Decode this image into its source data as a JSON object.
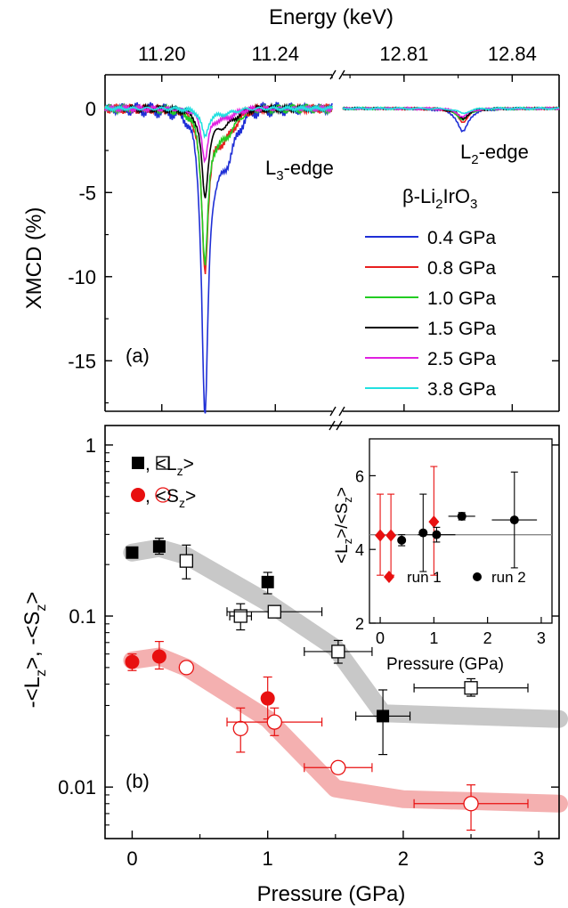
{
  "chart_data": [
    {
      "type": "line",
      "panel_label": "(a)",
      "ylabel": "XMCD (%)",
      "top_xlabel": "Energy (keV)",
      "ylim": [
        -18,
        2
      ],
      "yticks": [
        0,
        -5,
        -10,
        -15
      ],
      "segments": [
        {
          "xlim": [
            11.18,
            11.26
          ],
          "ticks": [
            11.2,
            11.24
          ],
          "tick_labels": [
            "11.20",
            "11.24"
          ]
        },
        {
          "xlim": [
            12.793,
            12.853
          ],
          "ticks": [
            12.81,
            12.84
          ],
          "tick_labels": [
            "12.81",
            "12.84"
          ]
        }
      ],
      "annotations": {
        "l3": {
          "main": "L",
          "sub": "3",
          "rest": "-edge"
        },
        "l2": {
          "main": "L",
          "sub": "2",
          "rest": "-edge"
        },
        "compound": {
          "main": "β-Li",
          "sub1": "2",
          "mid": "IrO",
          "sub2": "3"
        }
      },
      "legend_position": "right",
      "series": [
        {
          "name": "0.4 GPa",
          "color": "#1f2fd6",
          "l3_min": -17.3,
          "l2_min": -1.4
        },
        {
          "name": "0.8 GPa",
          "color": "#e82020",
          "l3_min": -9.1,
          "l2_min": -0.8
        },
        {
          "name": "1.0 GPa",
          "color": "#22cc22",
          "l3_min": -8.7,
          "l2_min": -0.7
        },
        {
          "name": "1.5 GPa",
          "color": "#000000",
          "l3_min": -5.0,
          "l2_min": -0.6
        },
        {
          "name": "2.5 GPa",
          "color": "#e020e0",
          "l3_min": -2.9,
          "l2_min": -0.5
        },
        {
          "name": "3.8 GPa",
          "color": "#22e0e0",
          "l3_min": -1.6,
          "l2_min": -0.3
        }
      ]
    },
    {
      "type": "scatter",
      "panel_label": "(b)",
      "xlabel": "Pressure (GPa)",
      "ylabel": {
        "t1": "-<L",
        "s1": "z",
        "t2": ">, -<S",
        "s2": "z",
        "t3": ">"
      },
      "xlim": [
        -0.2,
        3.15
      ],
      "ylim_log": [
        0.005,
        1.3
      ],
      "yscale": "log",
      "xticks": [
        0,
        1,
        2,
        3
      ],
      "ytick_values": [
        0.01,
        0.1,
        1
      ],
      "ytick_labels": [
        "0.01",
        "0.1",
        "1"
      ],
      "legend": [
        {
          "symbols": "squares",
          "label_main": ",  <L",
          "label_sub": "z",
          "label_end": ">"
        },
        {
          "symbols": "circles",
          "label_main": ",  <S",
          "label_sub": "z",
          "label_end": ">"
        }
      ],
      "band_L": [
        [
          0,
          0.235
        ],
        [
          0.2,
          0.25
        ],
        [
          0.4,
          0.225
        ],
        [
          1.0,
          0.12
        ],
        [
          1.5,
          0.065
        ],
        [
          1.85,
          0.027
        ],
        [
          3.15,
          0.025
        ]
      ],
      "band_S": [
        [
          0,
          0.055
        ],
        [
          0.2,
          0.058
        ],
        [
          0.4,
          0.05
        ],
        [
          1.0,
          0.025
        ],
        [
          1.5,
          0.0098
        ],
        [
          2.0,
          0.0085
        ],
        [
          3.15,
          0.008
        ]
      ],
      "L_filled": [
        {
          "x": 0.0,
          "y": 0.235,
          "ylo": 0.22,
          "yhi": 0.25,
          "xerr": 0
        },
        {
          "x": 0.2,
          "y": 0.255,
          "ylo": 0.23,
          "yhi": 0.285,
          "xerr": 0
        },
        {
          "x": 1.0,
          "y": 0.158,
          "ylo": 0.135,
          "yhi": 0.18,
          "xerr": 0
        },
        {
          "x": 1.85,
          "y": 0.026,
          "ylo": 0.0155,
          "yhi": 0.037,
          "xerr": 0.2
        }
      ],
      "L_open": [
        {
          "x": 0.4,
          "y": 0.21,
          "ylo": 0.165,
          "yhi": 0.26,
          "xerr": 0
        },
        {
          "x": 0.8,
          "y": 0.1,
          "ylo": 0.083,
          "yhi": 0.118,
          "xerr": 0.08
        },
        {
          "x": 1.05,
          "y": 0.106,
          "ylo": 0.1,
          "yhi": 0.112,
          "xerr": 0.35
        },
        {
          "x": 1.52,
          "y": 0.062,
          "ylo": 0.053,
          "yhi": 0.072,
          "xerr": 0.25
        },
        {
          "x": 2.5,
          "y": 0.038,
          "ylo": 0.034,
          "yhi": 0.043,
          "xerr": 0.42
        }
      ],
      "S_filled": [
        {
          "x": 0.0,
          "y": 0.054,
          "ylo": 0.048,
          "yhi": 0.06,
          "xerr": 0
        },
        {
          "x": 0.2,
          "y": 0.058,
          "ylo": 0.049,
          "yhi": 0.071,
          "xerr": 0
        },
        {
          "x": 1.0,
          "y": 0.033,
          "ylo": 0.025,
          "yhi": 0.044,
          "xerr": 0
        }
      ],
      "S_open": [
        {
          "x": 0.4,
          "y": 0.05,
          "ylo": 0.048,
          "yhi": 0.052,
          "xerr": 0
        },
        {
          "x": 0.8,
          "y": 0.022,
          "ylo": 0.016,
          "yhi": 0.029,
          "xerr": 0
        },
        {
          "x": 1.05,
          "y": 0.024,
          "ylo": 0.02,
          "yhi": 0.029,
          "xerr": 0.35
        },
        {
          "x": 1.52,
          "y": 0.013,
          "ylo": 0.0127,
          "yhi": 0.0133,
          "xerr": 0.25
        },
        {
          "x": 2.5,
          "y": 0.008,
          "ylo": 0.0056,
          "yhi": 0.0103,
          "xerr": 0.42
        }
      ],
      "colors": {
        "L": "#000000",
        "S": "#e81010",
        "band_L": "#c8c8c8",
        "band_S": "#f4b0b0"
      }
    },
    {
      "type": "scatter",
      "inset": true,
      "xlabel": "Pressure (GPa)",
      "ylabel": {
        "t1": "<L",
        "s1": "z",
        "t2": ">/<S",
        "s2": "z",
        "t3": ">"
      },
      "xlim": [
        -0.2,
        3.2
      ],
      "ylim": [
        2,
        7
      ],
      "xticks": [
        0,
        1,
        2,
        3
      ],
      "yticks": [
        2,
        4,
        6
      ],
      "hline": 4.4,
      "legend_position": "bottom",
      "series": [
        {
          "name": "run 1",
          "marker": "diamond",
          "color": "#e81010",
          "points": [
            {
              "x": 0.0,
              "y": 4.38,
              "ylo": 3.3,
              "yhi": 5.5,
              "xerr": 0
            },
            {
              "x": 0.2,
              "y": 4.38,
              "ylo": 3.3,
              "yhi": 5.5,
              "xerr": 0
            },
            {
              "x": 1.0,
              "y": 4.75,
              "ylo": 3.3,
              "yhi": 6.25,
              "xerr": 0
            }
          ]
        },
        {
          "name": "run 2",
          "marker": "circle",
          "color": "#000000",
          "points": [
            {
              "x": 0.4,
              "y": 4.25,
              "ylo": 4.1,
              "yhi": 4.4,
              "xerr": 0
            },
            {
              "x": 0.8,
              "y": 4.45,
              "ylo": 3.4,
              "yhi": 5.5,
              "xerr": 0.08
            },
            {
              "x": 1.05,
              "y": 4.4,
              "ylo": 4.2,
              "yhi": 4.6,
              "xerr": 0.35
            },
            {
              "x": 1.52,
              "y": 4.9,
              "ylo": 4.8,
              "yhi": 5.0,
              "xerr": 0.25
            },
            {
              "x": 2.5,
              "y": 4.8,
              "ylo": 3.5,
              "yhi": 6.1,
              "xerr": 0.42
            }
          ]
        }
      ]
    }
  ]
}
